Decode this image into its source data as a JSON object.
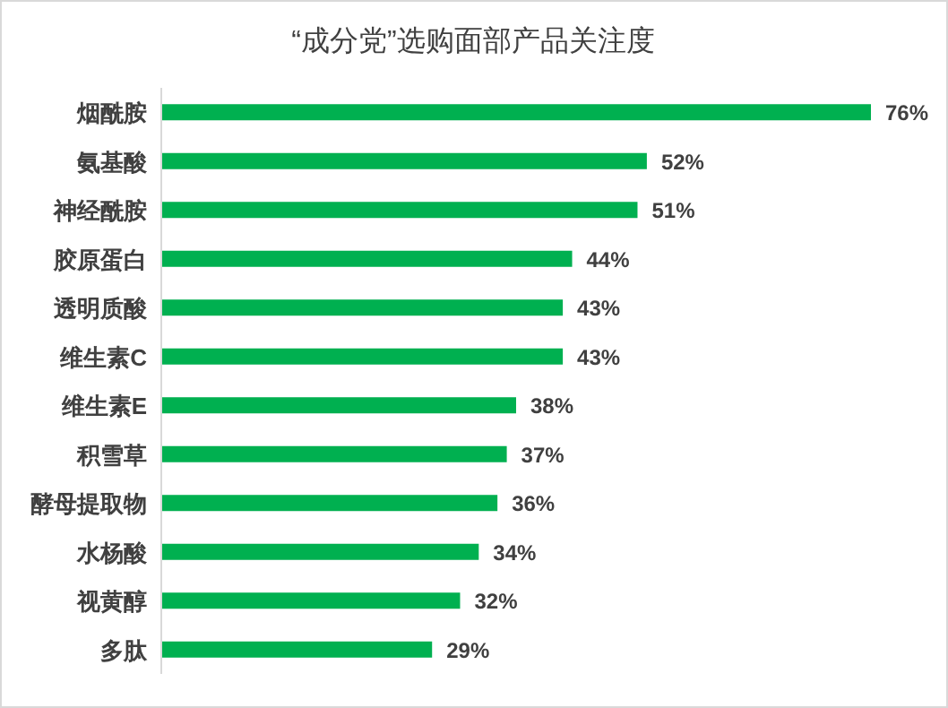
{
  "chart_data": {
    "type": "bar",
    "orientation": "horizontal",
    "title": "“成分党”选购面部产品关注度",
    "categories": [
      "烟酰胺",
      "氨基酸",
      "神经酰胺",
      "胶原蛋白",
      "透明质酸",
      "维生素C",
      "维生素E",
      "积雪草",
      "酵母提取物",
      "水杨酸",
      "视黄醇",
      "多肽"
    ],
    "values": [
      76,
      52,
      51,
      44,
      43,
      43,
      38,
      37,
      36,
      34,
      32,
      29
    ],
    "value_labels": [
      "76%",
      "52%",
      "51%",
      "44%",
      "43%",
      "43%",
      "38%",
      "37%",
      "36%",
      "34%",
      "32%",
      "29%"
    ],
    "color": "#00b050"
  }
}
